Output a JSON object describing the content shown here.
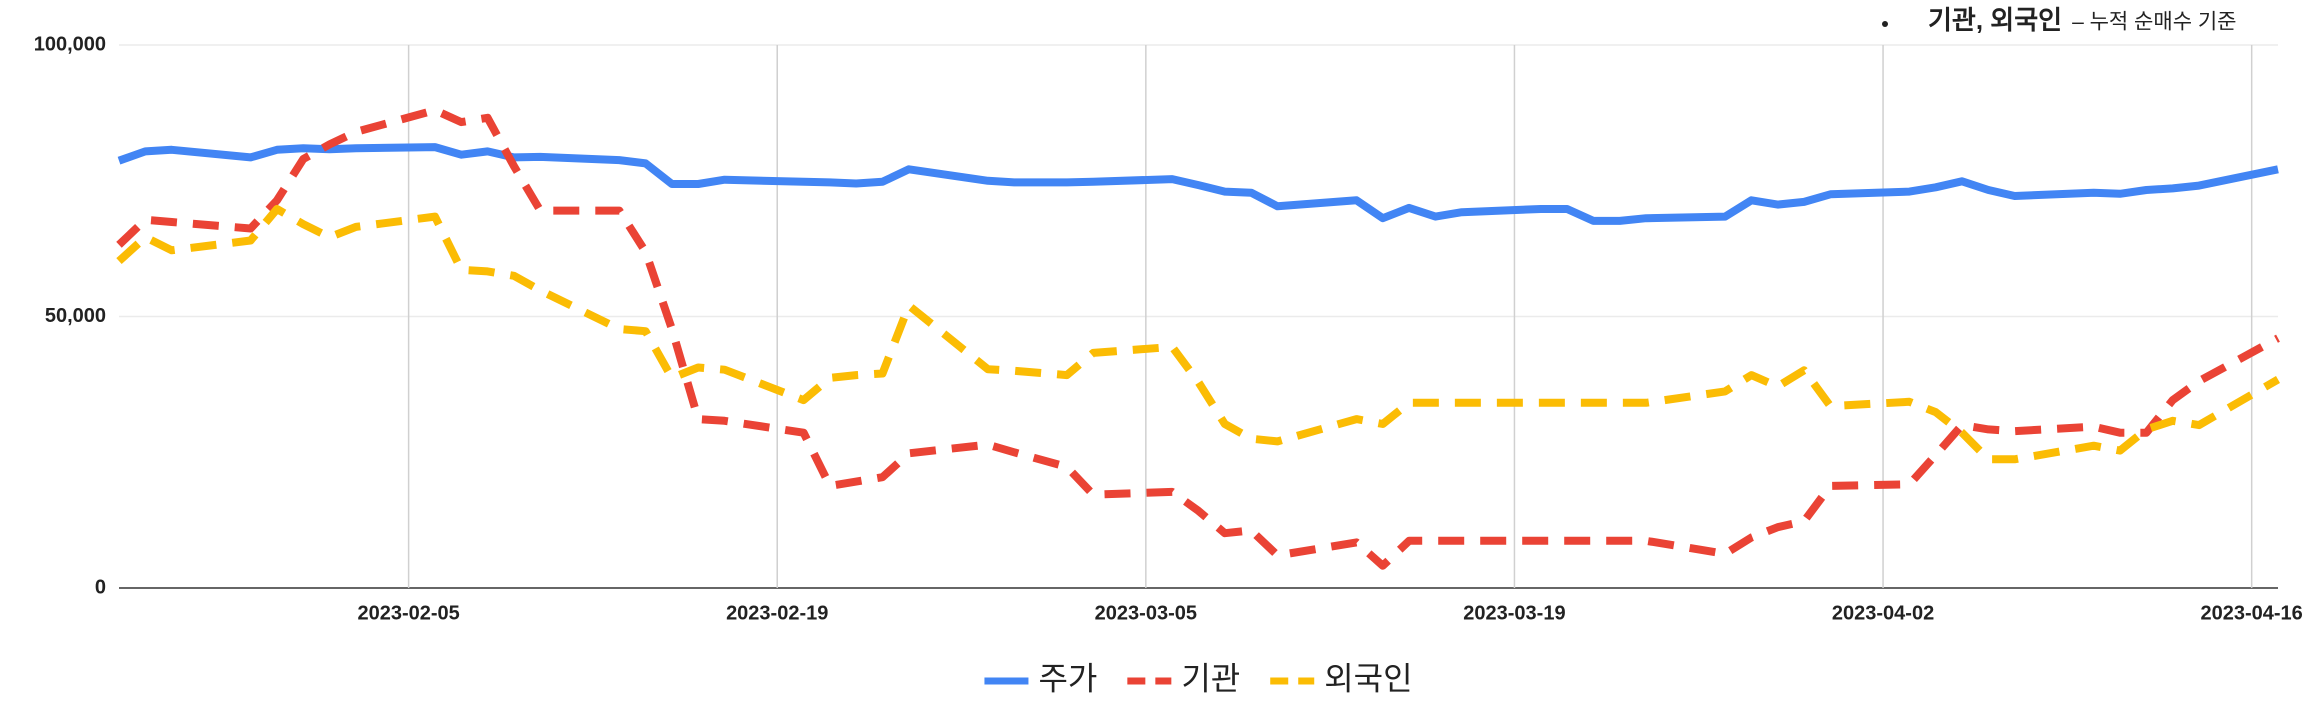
{
  "chart_data": {
    "type": "line",
    "annotation": {
      "bold": "기관, 외국인",
      "text": "– 누적 순매수 기준"
    },
    "x": [
      "2023-01-25",
      "2023-01-26",
      "2023-01-27",
      "2023-01-30",
      "2023-01-31",
      "2023-02-01",
      "2023-02-02",
      "2023-02-03",
      "2023-02-06",
      "2023-02-07",
      "2023-02-08",
      "2023-02-09",
      "2023-02-10",
      "2023-02-13",
      "2023-02-14",
      "2023-02-15",
      "2023-02-16",
      "2023-02-17",
      "2023-02-20",
      "2023-02-21",
      "2023-02-22",
      "2023-02-23",
      "2023-02-24",
      "2023-02-27",
      "2023-02-28",
      "2023-03-02",
      "2023-03-03",
      "2023-03-06",
      "2023-03-07",
      "2023-03-08",
      "2023-03-09",
      "2023-03-10",
      "2023-03-13",
      "2023-03-14",
      "2023-03-15",
      "2023-03-16",
      "2023-03-17",
      "2023-03-20",
      "2023-03-21",
      "2023-03-22",
      "2023-03-23",
      "2023-03-24",
      "2023-03-27",
      "2023-03-28",
      "2023-03-29",
      "2023-03-30",
      "2023-03-31",
      "2023-04-03",
      "2023-04-04",
      "2023-04-05",
      "2023-04-06",
      "2023-04-07",
      "2023-04-10",
      "2023-04-11",
      "2023-04-12",
      "2023-04-13",
      "2023-04-14",
      "2023-04-17"
    ],
    "series": [
      {
        "name": "주가",
        "color": "#4285f4",
        "dashed": false,
        "values": [
          78700,
          80400,
          80700,
          79300,
          80700,
          81000,
          80800,
          81000,
          81200,
          79800,
          80400,
          79300,
          79400,
          78800,
          78200,
          74400,
          74400,
          75200,
          74800,
          74700,
          74500,
          74800,
          77100,
          75000,
          74700,
          74700,
          74800,
          75300,
          74200,
          73000,
          72800,
          70300,
          71400,
          68100,
          70000,
          68400,
          69200,
          69800,
          69800,
          67600,
          67600,
          68100,
          68400,
          71400,
          70600,
          71100,
          72500,
          73000,
          73800,
          74900,
          73300,
          72200,
          72800,
          72600,
          73300,
          73600,
          74100,
          77100
        ]
      },
      {
        "name": "기관",
        "color": "#ea4335",
        "dashed": true,
        "values": [
          63200,
          67800,
          67400,
          66200,
          71400,
          79000,
          81700,
          84000,
          88000,
          85800,
          86600,
          77700,
          69500,
          69500,
          61900,
          47700,
          31100,
          30800,
          28600,
          18800,
          19600,
          20400,
          24800,
          26400,
          25000,
          22300,
          17200,
          17700,
          14200,
          10100,
          10600,
          6000,
          8400,
          4100,
          8700,
          8700,
          8700,
          8700,
          8700,
          8700,
          8700,
          8700,
          6300,
          9300,
          11200,
          12300,
          18800,
          19100,
          24500,
          30000,
          29200,
          28900,
          29700,
          28600,
          28600,
          34600,
          38100,
          46000
        ]
      },
      {
        "name": "외국인",
        "color": "#fbbc04",
        "dashed": true,
        "values": [
          60200,
          64600,
          62200,
          64000,
          69800,
          67000,
          64600,
          66500,
          68400,
          58600,
          58300,
          57500,
          54800,
          47700,
          47300,
          38700,
          40600,
          40200,
          34600,
          38700,
          39200,
          39500,
          52000,
          40300,
          40000,
          39200,
          43300,
          44400,
          37900,
          30200,
          27500,
          27000,
          31100,
          30200,
          34100,
          34100,
          34100,
          34100,
          34100,
          34100,
          34100,
          34100,
          36200,
          39200,
          37100,
          40100,
          33500,
          34300,
          32400,
          28600,
          23700,
          23700,
          26200,
          25300,
          29200,
          30800,
          30000,
          38400
        ]
      }
    ],
    "xlim": [
      "2023-01-25",
      "2023-04-17"
    ],
    "xticks": [
      "2023-02-05",
      "2023-02-19",
      "2023-03-05",
      "2023-03-19",
      "2023-04-02",
      "2023-04-16"
    ],
    "ylim": [
      0,
      100000
    ],
    "yticks": [
      0,
      {
        "value": 50000,
        "label": "50,000"
      },
      {
        "value": 100000,
        "label": "100,000"
      }
    ],
    "grid": true,
    "legend": "bottom"
  }
}
